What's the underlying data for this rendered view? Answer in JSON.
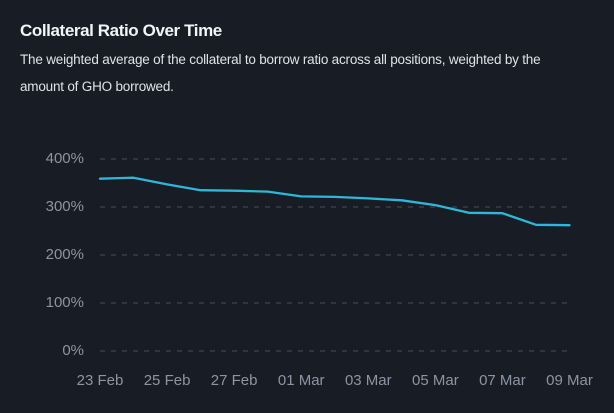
{
  "header": {
    "title": "Collateral Ratio Over Time",
    "subtitle": "The weighted average of the collateral to borrow ratio across all positions, weighted by the amount of GHO borrowed.",
    "subtitle_line1": "The weighted average of the collateral to borrow ratio across all positions, weighted by the",
    "subtitle_line2": "amount of GHO borrowed."
  },
  "colors": {
    "background": "#181d25",
    "title_text": "#f3f4f6",
    "subtitle_text": "#dfe2e6",
    "axis_label": "#8d94a2",
    "gridline": "#474d58",
    "series_line": "#2fb6d9"
  },
  "chart_data": {
    "type": "line",
    "title": "Collateral Ratio Over Time",
    "ylabel": "",
    "xlabel": "",
    "unit": "%",
    "x": [
      "23 Feb",
      "24 Feb",
      "25 Feb",
      "26 Feb",
      "27 Feb",
      "28 Feb",
      "01 Mar",
      "02 Mar",
      "03 Mar",
      "04 Mar",
      "05 Mar",
      "06 Mar",
      "07 Mar",
      "08 Mar",
      "09 Mar"
    ],
    "values": [
      359,
      361,
      347,
      335,
      334,
      332,
      322,
      321,
      318,
      314,
      304,
      288,
      287,
      263,
      262
    ],
    "ylim": [
      0,
      400
    ],
    "yticks": [
      400,
      300,
      200,
      100,
      0
    ],
    "ytick_labels": [
      "400%",
      "300%",
      "200%",
      "100%",
      "0%"
    ],
    "xtick_labels": [
      "23 Feb",
      "25 Feb",
      "27 Feb",
      "01 Mar",
      "03 Mar",
      "05 Mar",
      "07 Mar",
      "09 Mar"
    ],
    "xtick_day_indices": [
      0,
      2,
      4,
      6,
      8,
      10,
      12,
      14
    ],
    "grid": "horizontal-dashed",
    "legend": "none"
  }
}
